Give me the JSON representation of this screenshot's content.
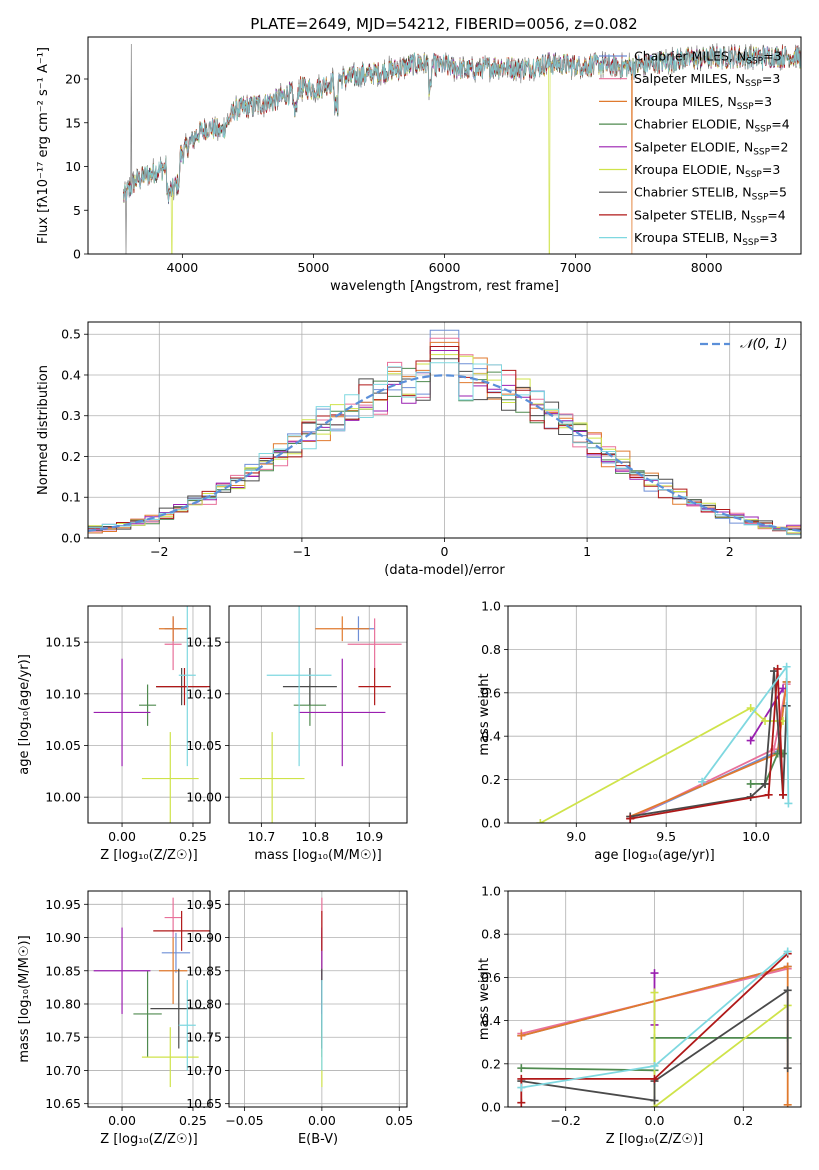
{
  "figure": {
    "title": "PLATE=2649, MJD=54212, FIBERID=0056, z=0.082"
  },
  "colors": {
    "Chabrier MILES": "#6f8fd6",
    "Salpeter MILES": "#e8719a",
    "Kroupa MILES": "#e07a2e",
    "Chabrier ELODIE": "#4f8a4f",
    "Salpeter ELODIE": "#9a1fb0",
    "Kroupa ELODIE": "#cfe34a",
    "Chabrier STELIB": "#4a4a4a",
    "Salpeter STELIB": "#b01818",
    "Kroupa STELIB": "#7fd8e0",
    "data": "#808080",
    "gaussian": "#5b8fd9"
  },
  "chart_data": [
    {
      "id": "spectrum",
      "type": "line",
      "title": "PLATE=2649, MJD=54212, FIBERID=0056, z=0.082",
      "xlabel": "wavelength [Angstrom, rest frame]",
      "ylabel": "Flux [fλ10⁻¹⁷ erg cm⁻² s⁻¹ A⁻¹]",
      "xlim": [
        3280,
        8720
      ],
      "ylim": [
        0,
        24.8
      ],
      "xticks": [
        4000,
        5000,
        6000,
        7000,
        8000
      ],
      "yticks": [
        0,
        5,
        10,
        15,
        20
      ],
      "grid": false,
      "legend_position": "right",
      "legend": [
        {
          "name": "Chabrier MILES",
          "nssp": "3"
        },
        {
          "name": "Salpeter MILES",
          "nssp": "3"
        },
        {
          "name": "Kroupa MILES",
          "nssp": "3"
        },
        {
          "name": "Chabrier ELODIE",
          "nssp": "4"
        },
        {
          "name": "Salpeter ELODIE",
          "nssp": "2"
        },
        {
          "name": "Kroupa ELODIE",
          "nssp": "3"
        },
        {
          "name": "Chabrier STELIB",
          "nssp": "5"
        },
        {
          "name": "Salpeter STELIB",
          "nssp": "4"
        },
        {
          "name": "Kroupa STELIB",
          "nssp": "3"
        }
      ],
      "continuum": {
        "x": [
          3550,
          3650,
          3800,
          3900,
          4000,
          4100,
          4200,
          4300,
          4400,
          4500,
          4700,
          4900,
          5000,
          5200,
          5400,
          5600,
          5800,
          6000,
          6200,
          6400,
          6600,
          6800,
          7000,
          7200,
          7400,
          7600,
          7800,
          8000,
          8200,
          8400,
          8600,
          8720
        ],
        "y": [
          6.5,
          8.5,
          9.5,
          10.0,
          11.5,
          13.5,
          14.5,
          14.0,
          16.5,
          16.8,
          17.5,
          19.0,
          18.8,
          20.0,
          20.5,
          21.0,
          21.8,
          21.5,
          21.0,
          21.5,
          21.2,
          21.8,
          21.5,
          21.6,
          21.4,
          21.8,
          22.2,
          22.4,
          22.5,
          22.5,
          22.6,
          22.5
        ]
      },
      "features": [
        {
          "x": 3610,
          "y": 24.0
        },
        {
          "x": 3570,
          "y": 0.0
        },
        {
          "x": 3920,
          "y": 0.0
        },
        {
          "x": 6800,
          "y": 0.0
        },
        {
          "x": 7430,
          "y": 0.0
        }
      ]
    },
    {
      "id": "residuals",
      "type": "line",
      "xlabel": "(data-model)/error",
      "ylabel": "Normed distribution",
      "xlim": [
        -2.5,
        2.5
      ],
      "ylim": [
        0,
        0.53
      ],
      "xticks": [
        -2,
        -1,
        0,
        1,
        2
      ],
      "yticks": [
        0.0,
        0.1,
        0.2,
        0.3,
        0.4,
        0.5
      ],
      "grid": true,
      "legend_position": "top-right",
      "gaussian_label": "𝒩(0, 1)",
      "bin_width": 0.1,
      "bin_start": -2.5,
      "peak_values": [
        0.51,
        0.49,
        0.48,
        0.47,
        0.46,
        0.45,
        0.44,
        0.47,
        0.43
      ],
      "series": [
        {
          "name": "Chabrier MILES"
        },
        {
          "name": "Salpeter MILES"
        },
        {
          "name": "Kroupa MILES"
        },
        {
          "name": "Chabrier ELODIE"
        },
        {
          "name": "Salpeter ELODIE"
        },
        {
          "name": "Kroupa ELODIE"
        },
        {
          "name": "Chabrier STELIB"
        },
        {
          "name": "Salpeter STELIB"
        },
        {
          "name": "Kroupa STELIB"
        }
      ]
    },
    {
      "id": "age_vs_Z",
      "type": "scatter",
      "xlabel": "Z [log₁₀(Z/Z☉)]",
      "ylabel": "age  [log₁₀(age/yr)]",
      "xlim": [
        -0.12,
        0.31
      ],
      "ylim": [
        9.975,
        10.185
      ],
      "xticks": [
        0.0,
        0.25
      ],
      "yticks": [
        10.0,
        10.05,
        10.1,
        10.15
      ],
      "grid": true,
      "points": [
        {
          "s": "Chabrier MILES",
          "x": 0.18,
          "xe": 0.03,
          "y": 10.163,
          "ye": 0.012
        },
        {
          "s": "Salpeter MILES",
          "x": 0.18,
          "xe": 0.03,
          "y": 10.148,
          "ye": 0.025
        },
        {
          "s": "Kroupa MILES",
          "x": 0.18,
          "xe": 0.05,
          "y": 10.163,
          "ye": 0.012
        },
        {
          "s": "Chabrier ELODIE",
          "x": 0.09,
          "xe": 0.03,
          "y": 10.089,
          "ye": 0.02
        },
        {
          "s": "Salpeter ELODIE",
          "x": 0.0,
          "xe": 0.1,
          "y": 10.082,
          "ye": 0.052
        },
        {
          "s": "Kroupa ELODIE",
          "x": 0.17,
          "xe": 0.1,
          "y": 10.018,
          "ye": 0.045
        },
        {
          "s": "Chabrier STELIB",
          "x": 0.21,
          "xe": 0.09,
          "y": 10.107,
          "ye": 0.018
        },
        {
          "s": "Salpeter STELIB",
          "x": 0.22,
          "xe": 0.1,
          "y": 10.107,
          "ye": 0.018
        },
        {
          "s": "Kroupa STELIB",
          "x": 0.23,
          "xe": 0.03,
          "y": 10.118,
          "ye": 0.088
        }
      ]
    },
    {
      "id": "age_vs_mass",
      "type": "scatter",
      "xlabel": "mass [log₁₀(M/M☉)]",
      "ylabel": "",
      "xlim": [
        10.64,
        10.97
      ],
      "ylim": [
        9.975,
        10.185
      ],
      "xticks": [
        10.7,
        10.8,
        10.9
      ],
      "yticks": [
        10.0,
        10.05,
        10.1,
        10.15
      ],
      "grid": true,
      "points": [
        {
          "s": "Chabrier MILES",
          "x": 10.88,
          "xe": 0.03,
          "y": 10.163,
          "ye": 0.012
        },
        {
          "s": "Salpeter MILES",
          "x": 10.91,
          "xe": 0.05,
          "y": 10.148,
          "ye": 0.025
        },
        {
          "s": "Kroupa MILES",
          "x": 10.85,
          "xe": 0.05,
          "y": 10.163,
          "ye": 0.012
        },
        {
          "s": "Chabrier ELODIE",
          "x": 10.79,
          "xe": 0.03,
          "y": 10.089,
          "ye": 0.02
        },
        {
          "s": "Salpeter ELODIE",
          "x": 10.85,
          "xe": 0.08,
          "y": 10.082,
          "ye": 0.052
        },
        {
          "s": "Kroupa ELODIE",
          "x": 10.72,
          "xe": 0.06,
          "y": 10.018,
          "ye": 0.045
        },
        {
          "s": "Chabrier STELIB",
          "x": 10.79,
          "xe": 0.05,
          "y": 10.107,
          "ye": 0.018
        },
        {
          "s": "Salpeter STELIB",
          "x": 10.91,
          "xe": 0.03,
          "y": 10.107,
          "ye": 0.018
        },
        {
          "s": "Kroupa STELIB",
          "x": 10.77,
          "xe": 0.06,
          "y": 10.118,
          "ye": 0.088
        }
      ]
    },
    {
      "id": "weight_vs_age",
      "type": "line",
      "xlabel": "age  [log₁₀(age/yr)]",
      "ylabel": "mass weight",
      "xlim": [
        8.62,
        10.25
      ],
      "ylim": [
        0,
        1
      ],
      "xticks": [
        9.0,
        9.5,
        10.0
      ],
      "yticks": [
        0.0,
        0.2,
        0.4,
        0.6,
        0.8,
        1.0
      ],
      "grid": true,
      "series": [
        {
          "name": "Chabrier MILES",
          "x": [
            9.3,
            10.12,
            10.17
          ],
          "y": [
            0.02,
            0.33,
            0.65
          ]
        },
        {
          "name": "Salpeter MILES",
          "x": [
            9.3,
            10.1,
            10.17
          ],
          "y": [
            0.02,
            0.34,
            0.64
          ]
        },
        {
          "name": "Kroupa MILES",
          "x": [
            9.3,
            10.12,
            10.17
          ],
          "y": [
            0.03,
            0.32,
            0.65
          ]
        },
        {
          "name": "Chabrier ELODIE",
          "x": [
            9.97,
            10.05,
            10.12,
            10.15
          ],
          "y": [
            0.18,
            0.18,
            0.32,
            0.32
          ]
        },
        {
          "name": "Salpeter ELODIE",
          "x": [
            9.97,
            10.15
          ],
          "y": [
            0.38,
            0.62
          ]
        },
        {
          "name": "Kroupa ELODIE",
          "x": [
            8.8,
            9.97,
            10.05,
            10.15
          ],
          "y": [
            0.0,
            0.53,
            0.47,
            0.47
          ]
        },
        {
          "name": "Chabrier STELIB",
          "x": [
            9.3,
            9.97,
            10.05,
            10.1,
            10.15,
            10.17
          ],
          "y": [
            0.03,
            0.12,
            0.18,
            0.7,
            0.13,
            0.54
          ]
        },
        {
          "name": "Salpeter STELIB",
          "x": [
            9.3,
            10.07,
            10.12,
            10.15
          ],
          "y": [
            0.02,
            0.13,
            0.71,
            0.13
          ]
        },
        {
          "name": "Kroupa STELIB",
          "x": [
            9.7,
            10.17,
            10.18
          ],
          "y": [
            0.19,
            0.72,
            0.09
          ]
        }
      ]
    },
    {
      "id": "mass_vs_Z",
      "type": "scatter",
      "xlabel": "Z [log₁₀(Z/Z☉)]",
      "ylabel": "mass [log₁₀(M/M☉)]",
      "xlim": [
        -0.12,
        0.31
      ],
      "ylim": [
        10.645,
        10.97
      ],
      "xticks": [
        0.0,
        0.25
      ],
      "yticks": [
        10.65,
        10.7,
        10.75,
        10.8,
        10.85,
        10.9,
        10.95
      ],
      "grid": true,
      "points": [
        {
          "s": "Chabrier MILES",
          "x": 0.19,
          "xe": 0.05,
          "y": 10.877,
          "ye": 0.03
        },
        {
          "s": "Salpeter MILES",
          "x": 0.18,
          "xe": 0.03,
          "y": 10.93,
          "ye": 0.03
        },
        {
          "s": "Kroupa MILES",
          "x": 0.18,
          "xe": 0.05,
          "y": 10.85,
          "ye": 0.05
        },
        {
          "s": "Chabrier ELODIE",
          "x": 0.09,
          "xe": 0.05,
          "y": 10.785,
          "ye": 0.065
        },
        {
          "s": "Salpeter ELODIE",
          "x": 0.0,
          "xe": 0.1,
          "y": 10.85,
          "ye": 0.065
        },
        {
          "s": "Kroupa ELODIE",
          "x": 0.17,
          "xe": 0.1,
          "y": 10.72,
          "ye": 0.045
        },
        {
          "s": "Chabrier STELIB",
          "x": 0.2,
          "xe": 0.1,
          "y": 10.793,
          "ye": 0.06
        },
        {
          "s": "Salpeter STELIB",
          "x": 0.21,
          "xe": 0.1,
          "y": 10.91,
          "ye": 0.03
        },
        {
          "s": "Kroupa STELIB",
          "x": 0.23,
          "xe": 0.03,
          "y": 10.768,
          "ye": 0.068
        }
      ]
    },
    {
      "id": "mass_vs_EBV",
      "type": "scatter",
      "xlabel": "E(B-V)",
      "ylabel": "",
      "xlim": [
        -0.06,
        0.055
      ],
      "ylim": [
        10.645,
        10.97
      ],
      "xticks": [
        -0.05,
        0.0,
        0.05
      ],
      "yticks": [
        10.65,
        10.7,
        10.75,
        10.8,
        10.85,
        10.9,
        10.95
      ],
      "grid": true,
      "points": [
        {
          "s": "Chabrier MILES",
          "x": 0.0,
          "xe": 0.0,
          "y": 10.877,
          "ye": 0.03
        },
        {
          "s": "Salpeter MILES",
          "x": 0.0,
          "xe": 0.0,
          "y": 10.93,
          "ye": 0.03
        },
        {
          "s": "Kroupa MILES",
          "x": 0.0,
          "xe": 0.0,
          "y": 10.85,
          "ye": 0.05
        },
        {
          "s": "Chabrier ELODIE",
          "x": 0.0,
          "xe": 0.0,
          "y": 10.785,
          "ye": 0.065
        },
        {
          "s": "Salpeter ELODIE",
          "x": 0.0,
          "xe": 0.0,
          "y": 10.85,
          "ye": 0.065
        },
        {
          "s": "Kroupa ELODIE",
          "x": 0.0,
          "xe": 0.0,
          "y": 10.72,
          "ye": 0.045
        },
        {
          "s": "Chabrier STELIB",
          "x": 0.0,
          "xe": 0.0,
          "y": 10.793,
          "ye": 0.06
        },
        {
          "s": "Salpeter STELIB",
          "x": 0.0,
          "xe": 0.0,
          "y": 10.91,
          "ye": 0.03
        },
        {
          "s": "Kroupa STELIB",
          "x": 0.0,
          "xe": 0.0,
          "y": 10.768,
          "ye": 0.068
        }
      ]
    },
    {
      "id": "weight_vs_Z",
      "type": "line",
      "xlabel": "Z [log₁₀(Z/Z☉)]",
      "ylabel": "mass weight",
      "xlim": [
        -0.33,
        0.33
      ],
      "ylim": [
        0,
        1
      ],
      "xticks": [
        -0.2,
        0.0,
        0.2
      ],
      "yticks": [
        0.0,
        0.2,
        0.4,
        0.6,
        0.8,
        1.0
      ],
      "grid": true,
      "series": [
        {
          "name": "Chabrier MILES",
          "x": [
            -0.3,
            0.3
          ],
          "y": [
            0.33,
            0.65
          ]
        },
        {
          "name": "Salpeter MILES",
          "x": [
            -0.3,
            0.3
          ],
          "y": [
            0.34,
            0.64
          ]
        },
        {
          "name": "Kroupa MILES",
          "x": [
            -0.3,
            0.3,
            0.3
          ],
          "y": [
            0.33,
            0.65,
            0.01
          ]
        },
        {
          "name": "Chabrier ELODIE",
          "x": [
            -0.3,
            0.0,
            0.0,
            0.3
          ],
          "y": [
            0.18,
            0.17,
            0.32,
            0.32
          ]
        },
        {
          "name": "Salpeter ELODIE",
          "x": [
            0.0,
            0.0
          ],
          "y": [
            0.62,
            0.38
          ]
        },
        {
          "name": "Kroupa ELODIE",
          "x": [
            0.0,
            0.0,
            0.3
          ],
          "y": [
            0.53,
            0.0,
            0.47
          ]
        },
        {
          "name": "Chabrier STELIB",
          "x": [
            -0.3,
            0.0,
            0.0,
            0.3,
            0.3
          ],
          "y": [
            0.12,
            0.03,
            0.12,
            0.54,
            0.18
          ]
        },
        {
          "name": "Salpeter STELIB",
          "x": [
            -0.3,
            -0.3,
            0.0,
            0.3
          ],
          "y": [
            0.02,
            0.13,
            0.13,
            0.71
          ]
        },
        {
          "name": "Kroupa STELIB",
          "x": [
            -0.3,
            0.0,
            0.3
          ],
          "y": [
            0.09,
            0.19,
            0.72
          ]
        }
      ]
    }
  ]
}
